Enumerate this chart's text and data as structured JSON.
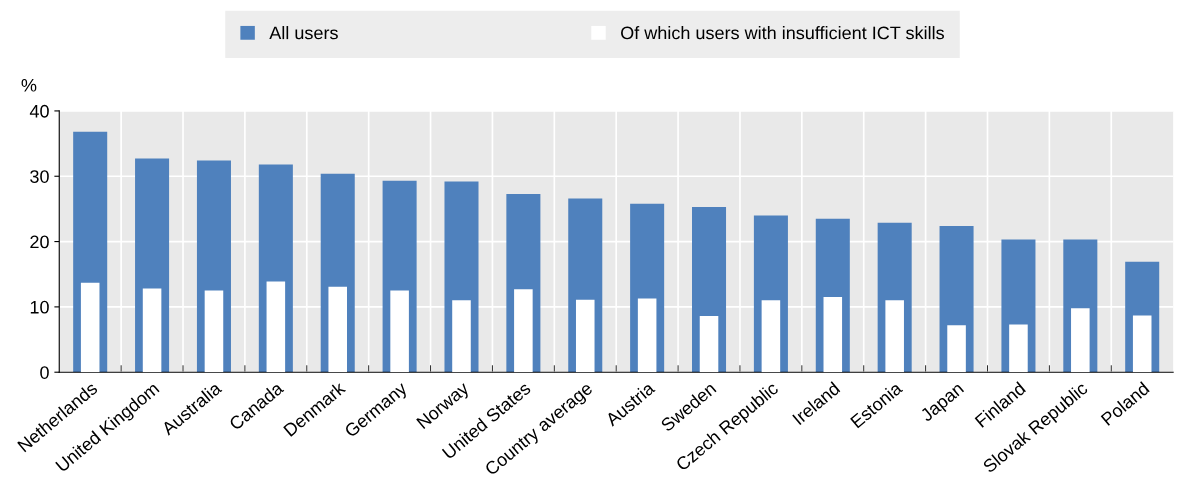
{
  "chart_data": {
    "type": "bar",
    "ylabel": "%",
    "categories": [
      "Netherlands",
      "United Kingdom",
      "Australia",
      "Canada",
      "Denmark",
      "Germany",
      "Norway",
      "United States",
      "Country average",
      "Austria",
      "Sweden",
      "Czech Republic",
      "Ireland",
      "Estonia",
      "Japan",
      "Finland",
      "Slovak Republic",
      "Poland"
    ],
    "series": [
      {
        "name": "All users",
        "color": "#4f81bd",
        "values": [
          36.8,
          32.7,
          32.4,
          31.8,
          30.4,
          29.3,
          29.2,
          27.3,
          26.6,
          25.8,
          25.3,
          24.0,
          23.5,
          22.9,
          22.4,
          20.3,
          20.3,
          16.9
        ]
      },
      {
        "name": "Of which users with insufficient ICT skills",
        "color": "#ffffff",
        "values": [
          13.7,
          12.8,
          12.5,
          13.9,
          13.1,
          12.5,
          11.0,
          12.7,
          11.1,
          11.3,
          8.6,
          11.0,
          11.5,
          11.0,
          7.2,
          7.3,
          9.8,
          8.7
        ]
      }
    ],
    "ylim": [
      0,
      40
    ],
    "yticks": [
      0,
      10,
      20,
      30,
      40
    ],
    "grid": true,
    "legend": "top"
  }
}
